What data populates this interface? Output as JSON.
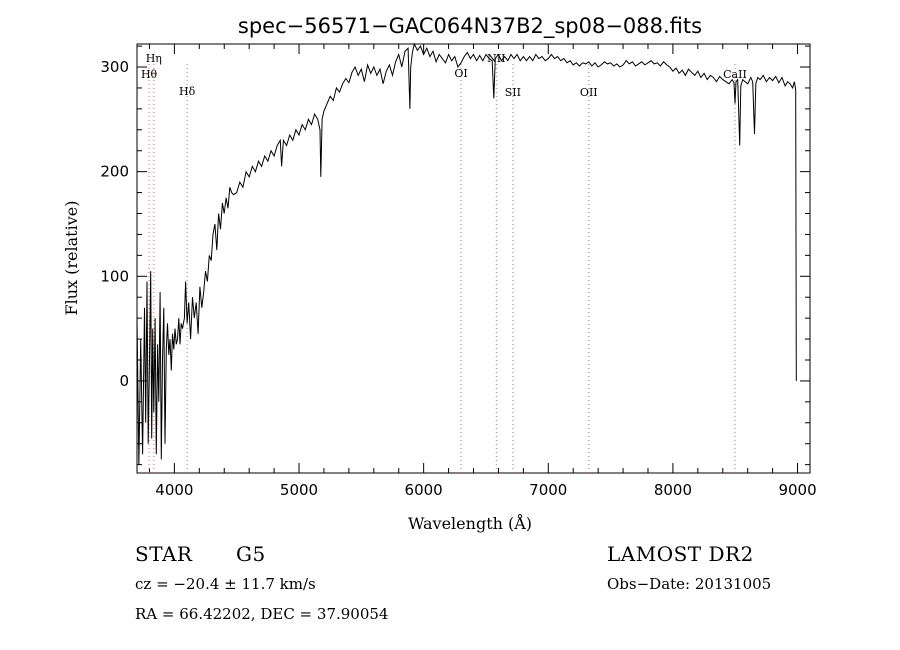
{
  "chart_data": {
    "type": "line",
    "title": "spec−56571−GAC064N37B2_sp08−088.fits",
    "xlabel": "Wavelength (Å)",
    "ylabel": "Flux (relative)",
    "xlim": [
      3700,
      9100
    ],
    "ylim": [
      -88,
      322
    ],
    "xticks": [
      4000,
      5000,
      6000,
      7000,
      8000,
      9000
    ],
    "yticks": [
      0,
      100,
      200,
      300
    ],
    "grid": false,
    "series": [
      {
        "values": [
          [
            3700,
            60
          ],
          [
            3715,
            -80
          ],
          [
            3730,
            40
          ],
          [
            3745,
            -70
          ],
          [
            3760,
            70
          ],
          [
            3770,
            -40
          ],
          [
            3780,
            95
          ],
          [
            3790,
            -60
          ],
          [
            3800,
            20
          ],
          [
            3810,
            105
          ],
          [
            3818,
            -55
          ],
          [
            3826,
            50
          ],
          [
            3835,
            -30
          ],
          [
            3845,
            60
          ],
          [
            3855,
            -70
          ],
          [
            3865,
            35
          ],
          [
            3875,
            -20
          ],
          [
            3885,
            85
          ],
          [
            3895,
            -75
          ],
          [
            3905,
            20
          ],
          [
            3915,
            70
          ],
          [
            3925,
            -60
          ],
          [
            3935,
            30
          ],
          [
            3945,
            55
          ],
          [
            3955,
            25
          ],
          [
            3965,
            40
          ],
          [
            3975,
            10
          ],
          [
            3985,
            45
          ],
          [
            3995,
            30
          ],
          [
            4005,
            50
          ],
          [
            4015,
            35
          ],
          [
            4025,
            40
          ],
          [
            4035,
            60
          ],
          [
            4045,
            35
          ],
          [
            4055,
            55
          ],
          [
            4065,
            50
          ],
          [
            4080,
            60
          ],
          [
            4090,
            95
          ],
          [
            4102,
            55
          ],
          [
            4115,
            75
          ],
          [
            4130,
            40
          ],
          [
            4145,
            80
          ],
          [
            4160,
            60
          ],
          [
            4175,
            75
          ],
          [
            4190,
            45
          ],
          [
            4205,
            90
          ],
          [
            4220,
            70
          ],
          [
            4235,
            85
          ],
          [
            4250,
            105
          ],
          [
            4265,
            95
          ],
          [
            4280,
            120
          ],
          [
            4295,
            115
          ],
          [
            4310,
            140
          ],
          [
            4325,
            150
          ],
          [
            4340,
            125
          ],
          [
            4355,
            160
          ],
          [
            4370,
            145
          ],
          [
            4385,
            170
          ],
          [
            4400,
            160
          ],
          [
            4415,
            175
          ],
          [
            4430,
            165
          ],
          [
            4445,
            185
          ],
          [
            4460,
            180
          ],
          [
            4475,
            178
          ],
          [
            4500,
            180
          ],
          [
            4525,
            190
          ],
          [
            4550,
            185
          ],
          [
            4575,
            200
          ],
          [
            4600,
            195
          ],
          [
            4625,
            205
          ],
          [
            4650,
            200
          ],
          [
            4675,
            210
          ],
          [
            4700,
            205
          ],
          [
            4725,
            215
          ],
          [
            4750,
            210
          ],
          [
            4775,
            220
          ],
          [
            4800,
            215
          ],
          [
            4825,
            225
          ],
          [
            4850,
            230
          ],
          [
            4860,
            205
          ],
          [
            4875,
            230
          ],
          [
            4900,
            225
          ],
          [
            4925,
            235
          ],
          [
            4950,
            230
          ],
          [
            4975,
            240
          ],
          [
            5000,
            235
          ],
          [
            5025,
            245
          ],
          [
            5050,
            240
          ],
          [
            5075,
            250
          ],
          [
            5100,
            245
          ],
          [
            5125,
            255
          ],
          [
            5150,
            250
          ],
          [
            5168,
            240
          ],
          [
            5175,
            195
          ],
          [
            5185,
            250
          ],
          [
            5200,
            258
          ],
          [
            5225,
            265
          ],
          [
            5250,
            272
          ],
          [
            5275,
            268
          ],
          [
            5300,
            280
          ],
          [
            5325,
            276
          ],
          [
            5350,
            284
          ],
          [
            5375,
            289
          ],
          [
            5400,
            285
          ],
          [
            5425,
            295
          ],
          [
            5450,
            300
          ],
          [
            5475,
            292
          ],
          [
            5500,
            298
          ],
          [
            5525,
            286
          ],
          [
            5550,
            302
          ],
          [
            5575,
            294
          ],
          [
            5600,
            300
          ],
          [
            5625,
            292
          ],
          [
            5650,
            298
          ],
          [
            5675,
            284
          ],
          [
            5700,
            296
          ],
          [
            5725,
            302
          ],
          [
            5750,
            292
          ],
          [
            5775,
            305
          ],
          [
            5800,
            312
          ],
          [
            5825,
            300
          ],
          [
            5850,
            315
          ],
          [
            5875,
            318
          ],
          [
            5890,
            260
          ],
          [
            5896,
            300
          ],
          [
            5910,
            314
          ],
          [
            5925,
            322
          ],
          [
            5950,
            316
          ],
          [
            5975,
            320
          ],
          [
            6000,
            312
          ],
          [
            6025,
            318
          ],
          [
            6050,
            310
          ],
          [
            6075,
            315
          ],
          [
            6100,
            305
          ],
          [
            6125,
            312
          ],
          [
            6150,
            308
          ],
          [
            6175,
            304
          ],
          [
            6200,
            312
          ],
          [
            6225,
            306
          ],
          [
            6250,
            310
          ],
          [
            6275,
            300
          ],
          [
            6300,
            304
          ],
          [
            6325,
            310
          ],
          [
            6350,
            314
          ],
          [
            6375,
            308
          ],
          [
            6400,
            312
          ],
          [
            6425,
            306
          ],
          [
            6450,
            311
          ],
          [
            6475,
            306
          ],
          [
            6500,
            312
          ],
          [
            6525,
            308
          ],
          [
            6550,
            306
          ],
          [
            6563,
            270
          ],
          [
            6575,
            308
          ],
          [
            6600,
            312
          ],
          [
            6625,
            306
          ],
          [
            6650,
            310
          ],
          [
            6675,
            306
          ],
          [
            6700,
            312
          ],
          [
            6725,
            308
          ],
          [
            6750,
            312
          ],
          [
            6775,
            306
          ],
          [
            6800,
            310
          ],
          [
            6825,
            306
          ],
          [
            6850,
            310
          ],
          [
            6875,
            306
          ],
          [
            6900,
            312
          ],
          [
            6925,
            308
          ],
          [
            6950,
            310
          ],
          [
            6975,
            306
          ],
          [
            7000,
            308
          ],
          [
            7025,
            312
          ],
          [
            7050,
            308
          ],
          [
            7075,
            310
          ],
          [
            7100,
            306
          ],
          [
            7125,
            308
          ],
          [
            7150,
            304
          ],
          [
            7175,
            306
          ],
          [
            7200,
            302
          ],
          [
            7225,
            304
          ],
          [
            7250,
            301
          ],
          [
            7275,
            304
          ],
          [
            7300,
            303
          ],
          [
            7325,
            305
          ],
          [
            7350,
            301
          ],
          [
            7375,
            304
          ],
          [
            7400,
            300
          ],
          [
            7425,
            302
          ],
          [
            7450,
            305
          ],
          [
            7475,
            303
          ],
          [
            7500,
            304
          ],
          [
            7525,
            301
          ],
          [
            7550,
            303
          ],
          [
            7575,
            300
          ],
          [
            7600,
            302
          ],
          [
            7625,
            306
          ],
          [
            7650,
            303
          ],
          [
            7675,
            305
          ],
          [
            7700,
            301
          ],
          [
            7725,
            303
          ],
          [
            7750,
            305
          ],
          [
            7775,
            302
          ],
          [
            7800,
            304
          ],
          [
            7825,
            306
          ],
          [
            7850,
            303
          ],
          [
            7875,
            304
          ],
          [
            7900,
            301
          ],
          [
            7925,
            305
          ],
          [
            7950,
            302
          ],
          [
            7975,
            300
          ],
          [
            8000,
            296
          ],
          [
            8025,
            299
          ],
          [
            8050,
            294
          ],
          [
            8075,
            297
          ],
          [
            8100,
            292
          ],
          [
            8125,
            298
          ],
          [
            8150,
            295
          ],
          [
            8175,
            292
          ],
          [
            8200,
            296
          ],
          [
            8225,
            290
          ],
          [
            8250,
            294
          ],
          [
            8275,
            288
          ],
          [
            8300,
            292
          ],
          [
            8325,
            290
          ],
          [
            8350,
            286
          ],
          [
            8375,
            291
          ],
          [
            8400,
            288
          ],
          [
            8425,
            286
          ],
          [
            8450,
            284
          ],
          [
            8475,
            288
          ],
          [
            8490,
            285
          ],
          [
            8498,
            265
          ],
          [
            8506,
            286
          ],
          [
            8520,
            288
          ],
          [
            8536,
            225
          ],
          [
            8545,
            282
          ],
          [
            8560,
            288
          ],
          [
            8580,
            286
          ],
          [
            8600,
            284
          ],
          [
            8625,
            290
          ],
          [
            8640,
            286
          ],
          [
            8655,
            236
          ],
          [
            8665,
            284
          ],
          [
            8680,
            290
          ],
          [
            8700,
            288
          ],
          [
            8725,
            292
          ],
          [
            8750,
            286
          ],
          [
            8775,
            290
          ],
          [
            8800,
            287
          ],
          [
            8825,
            291
          ],
          [
            8850,
            285
          ],
          [
            8875,
            290
          ],
          [
            8900,
            282
          ],
          [
            8920,
            286
          ],
          [
            8940,
            284
          ],
          [
            8960,
            280
          ],
          [
            8975,
            286
          ],
          [
            8985,
            278
          ],
          [
            8990,
            0
          ]
        ]
      }
    ],
    "lines": [
      {
        "label": "Hη",
        "x": 3835
      },
      {
        "label": "Hθ",
        "x": 3797
      },
      {
        "label": "Hδ",
        "x": 4102
      },
      {
        "label": "OI",
        "x": 6300
      },
      {
        "label": "NII",
        "x": 6583
      },
      {
        "label": "SII",
        "x": 6716
      },
      {
        "label": "OII",
        "x": 7325
      },
      {
        "label": "CaII",
        "x": 8498
      }
    ]
  },
  "info": {
    "object_type": "STAR",
    "subclass": "G5",
    "survey": "LAMOST DR2",
    "redshift": "cz = −20.4 ± 11.7 km/s",
    "obs_date": "Obs−Date: 20131005",
    "coords": "RA =  66.42202, DEC =  37.90054"
  },
  "colors": {
    "axis": "#000000",
    "spectrum": "#000000",
    "line_markers": "#e06666"
  }
}
